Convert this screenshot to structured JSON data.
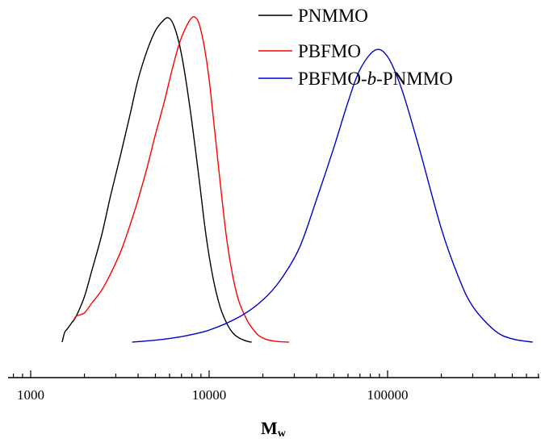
{
  "chart_data": {
    "type": "line",
    "xlabel": "M",
    "xlabel_sub": "w",
    "xscale": "log",
    "xlim": [
      800,
      750000
    ],
    "ylim": [
      0,
      1.05
    ],
    "x_ticks": [
      1000,
      10000,
      100000
    ],
    "x_tick_labels": [
      "1000",
      "10000",
      "100000"
    ],
    "y_axis_visible": false,
    "grid": false,
    "legend_position": "top-right",
    "series": [
      {
        "name": "PNMMO",
        "color": "#000000",
        "x": [
          1500,
          1550,
          1600,
          1700,
          1800,
          2000,
          2200,
          2500,
          2800,
          3200,
          3600,
          4000,
          4500,
          5000,
          5500,
          5900,
          6300,
          6800,
          7300,
          8000,
          8800,
          9600,
          10500,
          11500,
          12500,
          13500,
          14500,
          15500,
          16500,
          17300
        ],
        "y": [
          0.0,
          0.03,
          0.04,
          0.06,
          0.08,
          0.14,
          0.22,
          0.33,
          0.45,
          0.58,
          0.7,
          0.81,
          0.9,
          0.96,
          0.99,
          1.0,
          0.98,
          0.92,
          0.83,
          0.68,
          0.5,
          0.33,
          0.2,
          0.11,
          0.06,
          0.03,
          0.015,
          0.007,
          0.002,
          0.0
        ]
      },
      {
        "name": "PBFMO",
        "color": "#ff0000",
        "x": [
          1750,
          1800,
          2000,
          2200,
          2500,
          2800,
          3200,
          3600,
          4000,
          4500,
          5000,
          5600,
          6200,
          6800,
          7400,
          8000,
          8400,
          8800,
          9400,
          10000,
          10800,
          11700,
          12600,
          13600,
          14600,
          15600,
          16600,
          17600,
          19000,
          21000,
          24000,
          28000
        ],
        "y": [
          0.07,
          0.08,
          0.09,
          0.12,
          0.16,
          0.21,
          0.28,
          0.36,
          0.44,
          0.54,
          0.64,
          0.74,
          0.84,
          0.92,
          0.97,
          1.0,
          1.0,
          0.98,
          0.91,
          0.81,
          0.64,
          0.46,
          0.31,
          0.2,
          0.13,
          0.09,
          0.06,
          0.04,
          0.02,
          0.008,
          0.002,
          0.0
        ]
      },
      {
        "name": "PBFMO-b-PNMMO",
        "color": "#0000cc",
        "x": [
          3700,
          5000,
          7000,
          10000,
          15000,
          20000,
          25000,
          32000,
          40000,
          50000,
          60000,
          70000,
          85000,
          100000,
          120000,
          150000,
          200000,
          250000,
          300000,
          400000,
          500000,
          650000
        ],
        "y": [
          0.0,
          0.006,
          0.017,
          0.037,
          0.08,
          0.13,
          0.19,
          0.29,
          0.44,
          0.6,
          0.74,
          0.84,
          0.9,
          0.88,
          0.78,
          0.6,
          0.35,
          0.2,
          0.11,
          0.035,
          0.01,
          0.0
        ]
      }
    ]
  },
  "legend": {
    "entries": [
      {
        "label": "PNMMO",
        "color": "#000000"
      },
      {
        "label": "PBFMO",
        "color": "#ff0000"
      },
      {
        "label_pre": "PBFMO-",
        "label_italic": "b",
        "label_post": "-PNMMO",
        "color": "#0000cc"
      }
    ]
  }
}
